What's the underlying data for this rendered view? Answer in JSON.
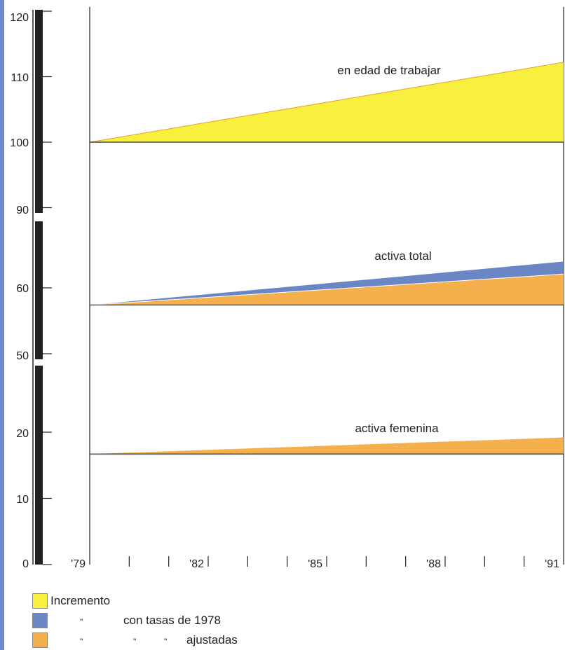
{
  "colors": {
    "incremento": "#f8ef3e",
    "tasas_1978": "#6b86c4",
    "ajustadas": "#f5b04e",
    "frame_strip": "#6f89c9",
    "axis": "#222222"
  },
  "chart_data": {
    "type": "area",
    "x_tick_labels": [
      "'79",
      "'82",
      "'85",
      "'88",
      "'91"
    ],
    "x": [
      1979,
      1991
    ],
    "x_minor_ticks": [
      1980,
      1981,
      1983,
      1984,
      1986,
      1987,
      1989,
      1990
    ],
    "y_tick_labels": [
      "120",
      "110",
      "100",
      "90",
      "60",
      "50",
      "20",
      "10",
      "0"
    ],
    "y_axis_broken": true,
    "series": [
      {
        "name": "en edad de trabajar",
        "baseline": [
          100,
          100
        ],
        "incremento": [
          100,
          112.2
        ]
      },
      {
        "name": "activa total",
        "baseline": [
          57.4,
          57.4
        ],
        "tasas_1978": [
          57.4,
          64.0
        ],
        "ajustadas": [
          57.4,
          62.1
        ]
      },
      {
        "name": "activa femenina",
        "baseline": [
          16.7,
          16.7
        ],
        "ajustadas": [
          16.7,
          19.2
        ]
      }
    ],
    "legend": {
      "incremento": "Incremento",
      "tasas_1978": "con tasas de 1978",
      "ajustadas": "ajustadas",
      "ditto": "\""
    }
  }
}
